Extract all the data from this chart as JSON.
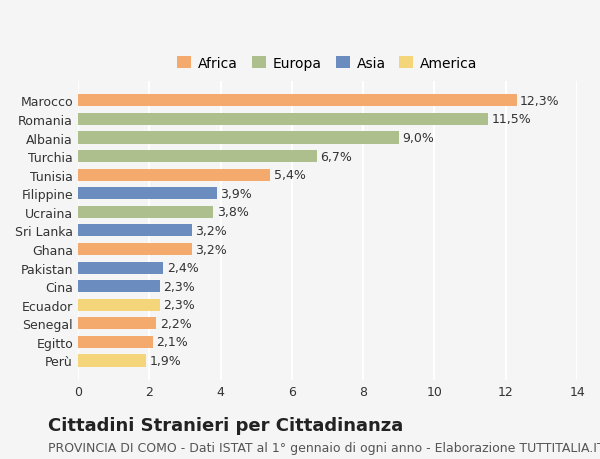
{
  "categories": [
    "Marocco",
    "Romania",
    "Albania",
    "Turchia",
    "Tunisia",
    "Filippine",
    "Ucraina",
    "Sri Lanka",
    "Ghana",
    "Pakistan",
    "Cina",
    "Ecuador",
    "Senegal",
    "Egitto",
    "Perù"
  ],
  "values": [
    12.3,
    11.5,
    9.0,
    6.7,
    5.4,
    3.9,
    3.8,
    3.2,
    3.2,
    2.4,
    2.3,
    2.3,
    2.2,
    2.1,
    1.9
  ],
  "continents": [
    "Africa",
    "Europa",
    "Europa",
    "Europa",
    "Africa",
    "Asia",
    "Europa",
    "Asia",
    "Africa",
    "Asia",
    "Asia",
    "America",
    "Africa",
    "Africa",
    "America"
  ],
  "colors": {
    "Africa": "#F4A96D",
    "Europa": "#ADBF8C",
    "Asia": "#6B8CBF",
    "America": "#F5D57A"
  },
  "legend_order": [
    "Africa",
    "Europa",
    "Asia",
    "America"
  ],
  "title": "Cittadini Stranieri per Cittadinanza",
  "subtitle": "PROVINCIA DI COMO - Dati ISTAT al 1° gennaio di ogni anno - Elaborazione TUTTITALIA.IT",
  "xlim": [
    0,
    14
  ],
  "xticks": [
    0,
    2,
    4,
    6,
    8,
    10,
    12,
    14
  ],
  "background_color": "#f5f5f5",
  "grid_color": "#ffffff",
  "title_fontsize": 13,
  "subtitle_fontsize": 9,
  "label_fontsize": 9,
  "tick_fontsize": 9,
  "legend_fontsize": 10
}
